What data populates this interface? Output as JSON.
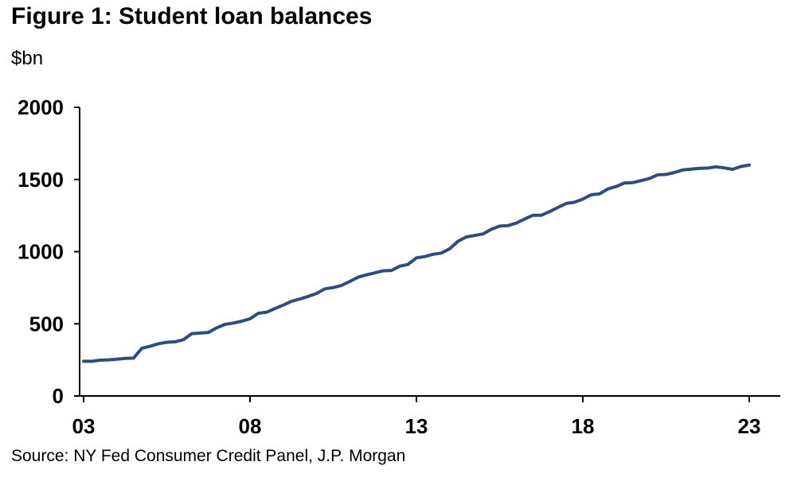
{
  "title": "Figure 1: Student loan balances",
  "unit": "$bn",
  "source": "Source: NY Fed Consumer Credit Panel,  J.P. Morgan",
  "colors": {
    "line": "#2e4d7f",
    "axis": "#000000"
  },
  "chart_data": {
    "type": "line",
    "title": "Figure 1: Student loan balances",
    "ylabel": "$bn",
    "xlabel": "",
    "ylim": [
      0,
      2000
    ],
    "yticks": [
      0,
      500,
      1000,
      1500,
      2000
    ],
    "xlim": [
      2003,
      2023.2
    ],
    "xticks": [
      {
        "value": 2003,
        "label": "03"
      },
      {
        "value": 2008,
        "label": "08"
      },
      {
        "value": 2013,
        "label": "13"
      },
      {
        "value": 2018,
        "label": "18"
      },
      {
        "value": 2023,
        "label": "23"
      }
    ],
    "grid": false,
    "series": [
      {
        "x": [
          2003.0,
          2003.25,
          2003.5,
          2003.75,
          2004.0,
          2004.25,
          2004.5,
          2004.75,
          2005.0,
          2005.25,
          2005.5,
          2005.75,
          2006.0,
          2006.25,
          2006.5,
          2006.75,
          2007.0,
          2007.25,
          2007.5,
          2007.75,
          2008.0,
          2008.25,
          2008.5,
          2008.75,
          2009.0,
          2009.25,
          2009.5,
          2009.75,
          2010.0,
          2010.25,
          2010.5,
          2010.75,
          2011.0,
          2011.25,
          2011.5,
          2011.75,
          2012.0,
          2012.25,
          2012.5,
          2012.75,
          2013.0,
          2013.25,
          2013.5,
          2013.75,
          2014.0,
          2014.25,
          2014.5,
          2014.75,
          2015.0,
          2015.25,
          2015.5,
          2015.75,
          2016.0,
          2016.25,
          2016.5,
          2016.75,
          2017.0,
          2017.25,
          2017.5,
          2017.75,
          2018.0,
          2018.25,
          2018.5,
          2018.75,
          2019.0,
          2019.25,
          2019.5,
          2019.75,
          2020.0,
          2020.25,
          2020.5,
          2020.75,
          2021.0,
          2021.25,
          2021.5,
          2021.75,
          2022.0,
          2022.25,
          2022.5,
          2022.75,
          2023.0
        ],
        "values": [
          240,
          240,
          248,
          250,
          255,
          260,
          262,
          330,
          345,
          362,
          372,
          375,
          390,
          432,
          436,
          440,
          472,
          496,
          505,
          518,
          535,
          573,
          580,
          606,
          630,
          656,
          672,
          690,
          710,
          742,
          751,
          766,
          794,
          823,
          839,
          853,
          867,
          870,
          899,
          912,
          957,
          966,
          982,
          990,
          1020,
          1072,
          1102,
          1112,
          1123,
          1155,
          1177,
          1180,
          1198,
          1226,
          1252,
          1252,
          1277,
          1306,
          1334,
          1342,
          1364,
          1394,
          1400,
          1434,
          1451,
          1476,
          1478,
          1492,
          1507,
          1532,
          1535,
          1548,
          1566,
          1572,
          1577,
          1579,
          1588,
          1580,
          1570,
          1590,
          1600
        ]
      }
    ]
  }
}
